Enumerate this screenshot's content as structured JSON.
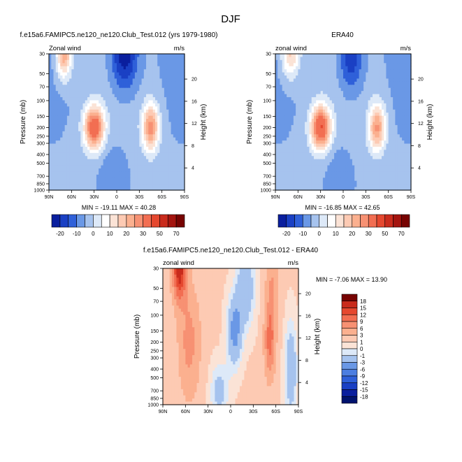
{
  "page_title": "DJF",
  "palette": {
    "positive": [
      "#fbe3d6",
      "#fdcab3",
      "#fbb08f",
      "#f79173",
      "#f26e52",
      "#e5482f",
      "#c92b1c",
      "#a4140f",
      "#770302"
    ],
    "negative": [
      "#dde9f8",
      "#c3d8f4",
      "#a6c3ee",
      "#88aeea",
      "#6a98e6",
      "#4c7ee1",
      "#2f60d9",
      "#1a40c4",
      "#0a1f9e",
      "#00136e"
    ],
    "zero": "#ffffff"
  },
  "charts": [
    {
      "title": "f.e15a6.FAMIPC5.ne120_ne120.Club_Test.012 (yrs 1979-1980)",
      "left_label": "Zonal wind",
      "right_label": "m/s",
      "stats": "MIN = -19.11  MAX =  40.28",
      "colorbar_labels": [
        "-20",
        "-10",
        "0",
        "10",
        "20",
        "30",
        "50",
        "70"
      ]
    },
    {
      "title": "ERA40",
      "left_label": "zonal wind",
      "right_label": "m/s",
      "stats": "MIN = -16.85  MAX =  42.65",
      "colorbar_labels": [
        "-20",
        "-10",
        "0",
        "10",
        "20",
        "30",
        "50",
        "70"
      ]
    },
    {
      "title": "f.e15a6.FAMIPC5.ne120_ne120.Club_Test.012 - ERA40",
      "left_label": "zonal wind",
      "right_label": "m/s",
      "stats": "MIN =  -7.06  MAX =  13.90",
      "colorbar_labels": [
        "18",
        "15",
        "12",
        "9",
        "6",
        "3",
        "1",
        "0",
        "-1",
        "-3",
        "-6",
        "-9",
        "-12",
        "-15",
        "-18"
      ]
    }
  ],
  "axes": {
    "ylabel_left": "Pressure (mb)",
    "ylabel_right": "Height (km)",
    "pressure_ticks": [
      "30",
      "50",
      "70",
      "100",
      "150",
      "200",
      "250",
      "300",
      "400",
      "500",
      "700",
      "850",
      "1000"
    ],
    "height_ticks": [
      "4",
      "8",
      "12",
      "16",
      "20"
    ],
    "lat_ticks": [
      "90N",
      "60N",
      "30N",
      "0",
      "30S",
      "60S",
      "90S"
    ]
  },
  "chart_data": [
    {
      "type": "heatmap",
      "title": "f.e15a6.FAMIPC5.ne120_ne120.Club_Test.012 (yrs 1979-1980)",
      "x_unit": "latitude",
      "y_unit": "Pressure (mb)",
      "xlim": [
        90,
        -90
      ],
      "ylim": [
        1000,
        30
      ],
      "yscale": "log",
      "features": [
        {
          "kind": "jet",
          "lat": 30,
          "p": 200,
          "amp": 42,
          "lat_w": 13,
          "lnp_w": 0.55
        },
        {
          "kind": "jet",
          "lat": 70,
          "p": 30,
          "amp": 30,
          "lat_w": 10,
          "lnp_w": 0.6
        },
        {
          "kind": "jet",
          "lat": -45,
          "p": 200,
          "amp": 32,
          "lat_w": 11,
          "lnp_w": 0.6
        },
        {
          "kind": "easterly",
          "lat": -10,
          "p": 30,
          "amp": -22,
          "lat_w": 18,
          "lnp_w": 0.9
        },
        {
          "kind": "easterly",
          "lat": 5,
          "p": 700,
          "amp": -6,
          "lat_w": 18,
          "lnp_w": 0.8
        }
      ],
      "min": -19.11,
      "max": 40.28
    },
    {
      "type": "heatmap",
      "title": "ERA40",
      "x_unit": "latitude",
      "y_unit": "Pressure (mb)",
      "xlim": [
        90,
        -90
      ],
      "ylim": [
        1000,
        30
      ],
      "yscale": "log",
      "features": [
        {
          "kind": "jet",
          "lat": 30,
          "p": 200,
          "amp": 44,
          "lat_w": 13,
          "lnp_w": 0.55
        },
        {
          "kind": "jet",
          "lat": 70,
          "p": 30,
          "amp": 22,
          "lat_w": 12,
          "lnp_w": 0.6
        },
        {
          "kind": "jet",
          "lat": -45,
          "p": 200,
          "amp": 30,
          "lat_w": 11,
          "lnp_w": 0.6
        },
        {
          "kind": "easterly",
          "lat": -10,
          "p": 30,
          "amp": -18,
          "lat_w": 16,
          "lnp_w": 0.9
        },
        {
          "kind": "easterly",
          "lat": 5,
          "p": 700,
          "amp": -5,
          "lat_w": 18,
          "lnp_w": 0.8
        }
      ],
      "min": -16.85,
      "max": 42.65
    },
    {
      "type": "heatmap",
      "title": "f.e15a6.FAMIPC5.ne120_ne120.Club_Test.012 - ERA40",
      "x_unit": "latitude",
      "y_unit": "Pressure (mb)",
      "xlim": [
        90,
        -90
      ],
      "ylim": [
        1000,
        30
      ],
      "yscale": "log",
      "features": [
        {
          "kind": "diff",
          "lat": 68,
          "p": 30,
          "amp": 16,
          "lat_w": 9,
          "lnp_w": 0.8
        },
        {
          "kind": "diff",
          "lat": 55,
          "p": 200,
          "amp": 6,
          "lat_w": 14,
          "lnp_w": 1.4
        },
        {
          "kind": "diff",
          "lat": -52,
          "p": 200,
          "amp": 9,
          "lat_w": 7,
          "lnp_w": 0.9
        },
        {
          "kind": "diff",
          "lat": -55,
          "p": 50,
          "amp": 5,
          "lat_w": 8,
          "lnp_w": 1.0
        },
        {
          "kind": "diff",
          "lat": -5,
          "p": 150,
          "amp": -5,
          "lat_w": 10,
          "lnp_w": 0.9
        },
        {
          "kind": "diff",
          "lat": 15,
          "p": 700,
          "amp": -3,
          "lat_w": 12,
          "lnp_w": 0.7
        },
        {
          "kind": "diff",
          "lat": -20,
          "p": 50,
          "amp": -4,
          "lat_w": 12,
          "lnp_w": 1.0
        },
        {
          "kind": "diff",
          "lat": -80,
          "p": 400,
          "amp": -4,
          "lat_w": 8,
          "lnp_w": 1.2
        }
      ],
      "min": -7.06,
      "max": 13.9
    }
  ]
}
